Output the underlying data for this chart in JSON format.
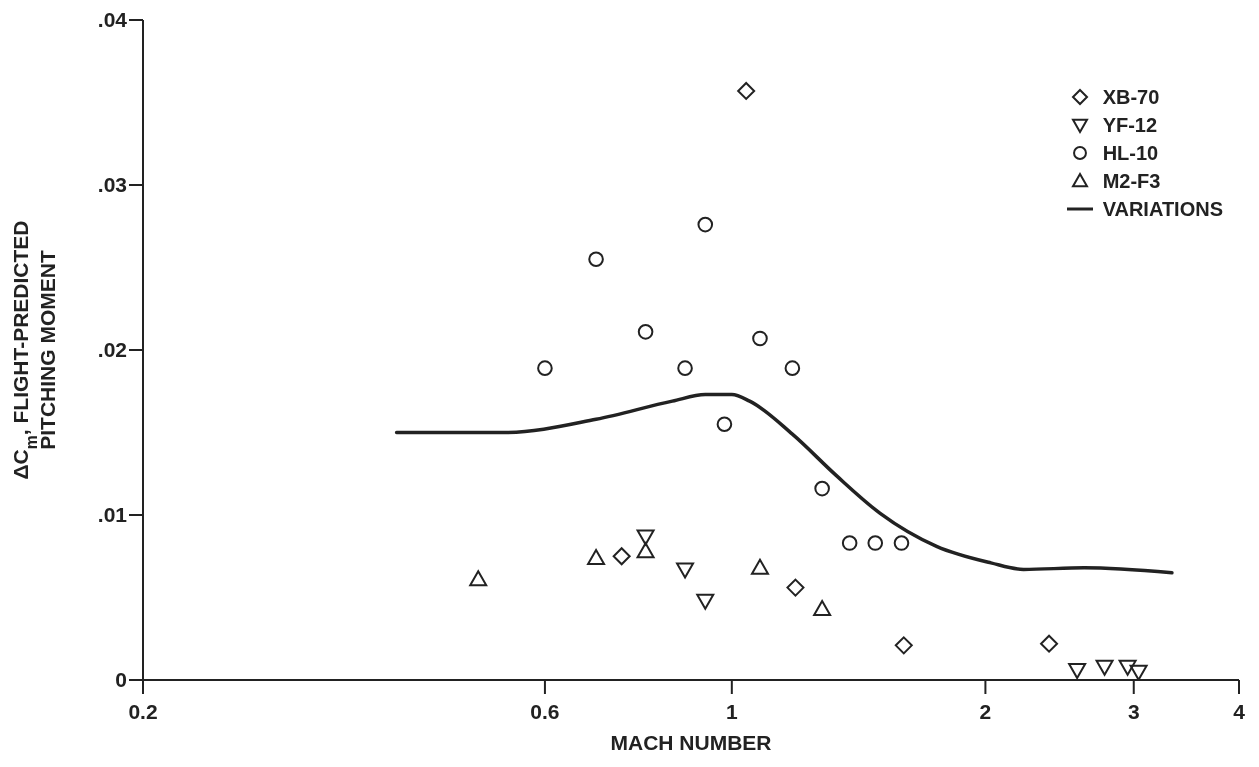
{
  "chart_data": {
    "type": "scatter",
    "xlabel": "MACH NUMBER",
    "ylabel": "ΔC$_{m}$, FLIGHT-PREDICTED\nPITCHING MOMENT",
    "log": "x",
    "xlim": [
      0.2,
      4
    ],
    "xticks": [
      0.2,
      0.6,
      1,
      2,
      3,
      4
    ],
    "ylim": [
      0,
      0.04
    ],
    "yticks": [
      {
        "value": 0,
        "label": "0"
      },
      {
        "value": 0.01,
        "label": ".01"
      },
      {
        "value": 0.02,
        "label": ".02"
      },
      {
        "value": 0.03,
        "label": ".03"
      },
      {
        "value": 0.04,
        "label": ".04"
      }
    ],
    "grid": false,
    "legend": "top right",
    "series": [
      {
        "name": "XB-70",
        "color": "#222222",
        "marker": "diamond",
        "x": [
          1.04,
          0.74,
          1.19,
          1.6,
          2.38
        ],
        "values": [
          0.0357,
          0.0075,
          0.0056,
          0.0021,
          0.0022
        ]
      },
      {
        "name": "YF-12",
        "color": "#222222",
        "marker": "triangle-down",
        "x": [
          0.79,
          0.88,
          0.93,
          2.57,
          2.77,
          2.95,
          3.04
        ],
        "values": [
          0.0087,
          0.0067,
          0.0048,
          0.0006,
          0.0008,
          0.0008,
          0.0005
        ]
      },
      {
        "name": "HL-10",
        "color": "#222222",
        "marker": "circle",
        "x": [
          0.6,
          0.69,
          0.79,
          0.88,
          0.93,
          0.98,
          1.08,
          1.18,
          1.28,
          1.38,
          1.48,
          1.59
        ],
        "values": [
          0.0189,
          0.0255,
          0.0211,
          0.0189,
          0.0276,
          0.0155,
          0.0207,
          0.0189,
          0.0116,
          0.0083,
          0.0083,
          0.0083
        ]
      },
      {
        "name": "M2-F3",
        "color": "#222222",
        "marker": "triangle",
        "x": [
          0.5,
          0.69,
          0.79,
          1.08,
          1.28
        ],
        "values": [
          0.0061,
          0.0074,
          0.0078,
          0.0068,
          0.0043
        ]
      },
      {
        "name": "VARIATIONS",
        "type": "line",
        "color": "#222222",
        "marker": "none",
        "line_style": "solid",
        "x": [
          0.4,
          0.54,
          0.69,
          0.85,
          0.93,
          1.0,
          1.05,
          1.18,
          1.33,
          1.5,
          1.75,
          2.03,
          2.22,
          2.62,
          3.33
        ],
        "values": [
          0.015,
          0.015,
          0.0158,
          0.0169,
          0.0173,
          0.0173,
          0.0169,
          0.0149,
          0.0124,
          0.0101,
          0.0081,
          0.0071,
          0.0067,
          0.0068,
          0.0065
        ]
      }
    ]
  }
}
